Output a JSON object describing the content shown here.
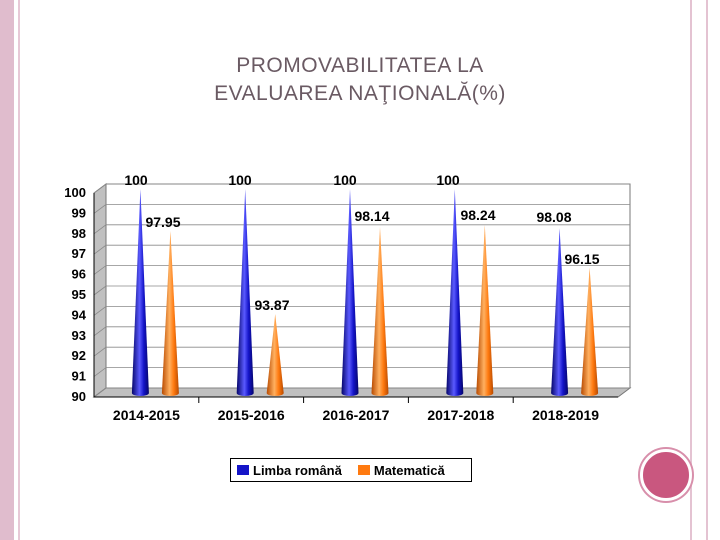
{
  "slide": {
    "title_line1": "PROMOVABILITATEA LA",
    "title_line2": "EVALUAREA NAŢIONALĂ(%)"
  },
  "colors": {
    "series1": "#1414c8",
    "series1_dark": "#05056a",
    "series1_light": "#5a5aff",
    "series2": "#ff7a10",
    "series2_dark": "#b84a00",
    "series2_light": "#ffb060",
    "plot_bg": "#ffffff",
    "wall": "#c0c0c0"
  },
  "chart_data": {
    "type": "bar",
    "shape": "cone-3d",
    "categories": [
      "2014-2015",
      "2015-2016",
      "2016-2017",
      "2017-2018",
      "2018-2019"
    ],
    "series": [
      {
        "name": "Limba română",
        "values": [
          100,
          100,
          100,
          100,
          98.08
        ],
        "labels": [
          "100",
          "100",
          "100",
          "100",
          "98.08"
        ]
      },
      {
        "name": "Matematică",
        "values": [
          97.95,
          93.87,
          98.14,
          98.24,
          96.15
        ],
        "labels": [
          "97.95",
          "93.87",
          "98.14",
          "98.24",
          "96.15"
        ]
      }
    ],
    "y_ticks": [
      "90",
      "91",
      "92",
      "93",
      "94",
      "95",
      "96",
      "97",
      "98",
      "99",
      "100"
    ],
    "ylim": [
      90,
      100
    ],
    "grid": true,
    "legend_position": "bottom"
  }
}
